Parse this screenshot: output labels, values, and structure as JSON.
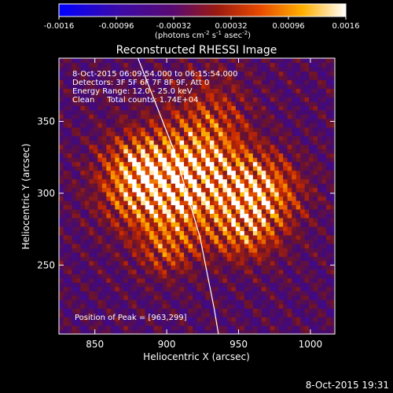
{
  "chart_data": {
    "type": "heatmap",
    "title": "Reconstructed RHESSI Image",
    "xlabel": "Heliocentric X (arcsec)",
    "ylabel": "Heliocentric Y (arcsec)",
    "xlim": [
      825,
      1017
    ],
    "ylim": [
      202,
      394
    ],
    "xticks": [
      850,
      900,
      950,
      1000
    ],
    "yticks": [
      250,
      300,
      350
    ],
    "colorbar": {
      "range": [
        -0.0016,
        0.0016
      ],
      "ticks": [
        "-0.0016",
        "-0.00096",
        "-0.00032",
        "0.00032",
        "0.00096",
        "0.0016"
      ],
      "label_main": "(photons cm",
      "label_sup1": "-2",
      "label_mid1": " s",
      "label_sup2": "-1",
      "label_mid2": " asec",
      "label_sup3": "-2",
      "label_end": ")",
      "colors": [
        "#0000ff",
        "#5a0a7e",
        "#8a1a1a",
        "#e84a00",
        "#ffb000",
        "#ffffff"
      ]
    },
    "annotations": [
      "8-Oct-2015 06:09:54.000 to 06:15:54.000",
      "Detectors: 3F 5F 6F 7F 8F 9F, Att 0",
      "Energy Range: 12.0 - 25.0 keV",
      "Clean     Total counts: 1.74E+04"
    ],
    "peak_label": "Position of Peak = [963,299]",
    "peak": [
      963,
      299
    ],
    "sources": [
      {
        "x": 902,
        "y": 303,
        "sigma_x": 28,
        "sigma_y": 24,
        "amp": 1.0
      },
      {
        "x": 965,
        "y": 301,
        "sigma_x": 20,
        "sigma_y": 18,
        "amp": 0.95
      },
      {
        "x": 930,
        "y": 340,
        "sigma_x": 20,
        "sigma_y": 30,
        "amp": 0.6
      },
      {
        "x": 880,
        "y": 315,
        "sigma_x": 18,
        "sigma_y": 20,
        "amp": 0.6
      },
      {
        "x": 955,
        "y": 270,
        "sigma_x": 18,
        "sigma_y": 14,
        "amp": 0.55
      },
      {
        "x": 900,
        "y": 260,
        "sigma_x": 14,
        "sigma_y": 14,
        "amp": 0.45
      }
    ],
    "limb_points": [
      [
        880,
        394
      ],
      [
        905,
        330
      ],
      [
        923,
        270
      ],
      [
        933,
        220
      ],
      [
        936,
        202
      ]
    ]
  },
  "footer": {
    "timestamp": "8-Oct-2015 19:31"
  }
}
